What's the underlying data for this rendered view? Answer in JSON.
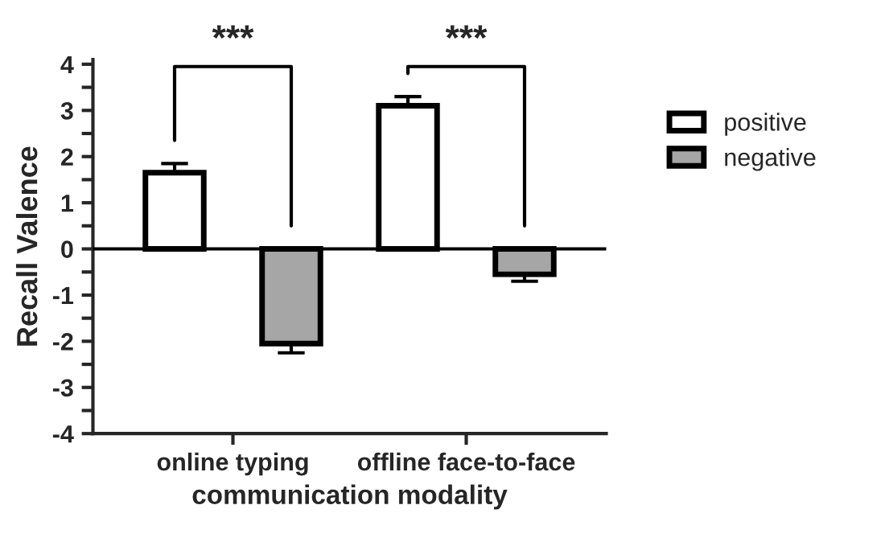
{
  "chart_data": {
    "type": "bar",
    "xlabel": "communication modality",
    "ylabel": "Recall Valence",
    "categories": [
      "online typing",
      "offline face-to-face"
    ],
    "series": [
      {
        "name": "positive",
        "color": "#ffffff",
        "values": [
          1.65,
          3.1
        ],
        "errors": [
          0.2,
          0.2
        ]
      },
      {
        "name": "negative",
        "color": "#a6a6a6",
        "values": [
          -2.05,
          -0.55
        ],
        "errors": [
          0.2,
          0.15
        ]
      }
    ],
    "ylim": [
      -4,
      4.1
    ],
    "yticks": [
      -4,
      {
        "value": -3.5,
        "label": null
      },
      -3,
      {
        "value": -2.5,
        "label": null
      },
      -2,
      {
        "value": -1.5,
        "label": null
      },
      -1,
      {
        "value": -0.5,
        "label": null
      },
      0,
      {
        "value": 0.5,
        "label": null
      },
      1,
      {
        "value": 1.5,
        "label": null
      },
      2,
      {
        "value": 2.5,
        "label": null
      },
      3,
      {
        "value": 3.5,
        "label": null
      },
      4
    ],
    "ref_lines": [
      {
        "axis": "y",
        "value": 0,
        "color": "#000000"
      }
    ],
    "annotations": [
      "***",
      "***"
    ],
    "legend": "right",
    "grid": false
  }
}
